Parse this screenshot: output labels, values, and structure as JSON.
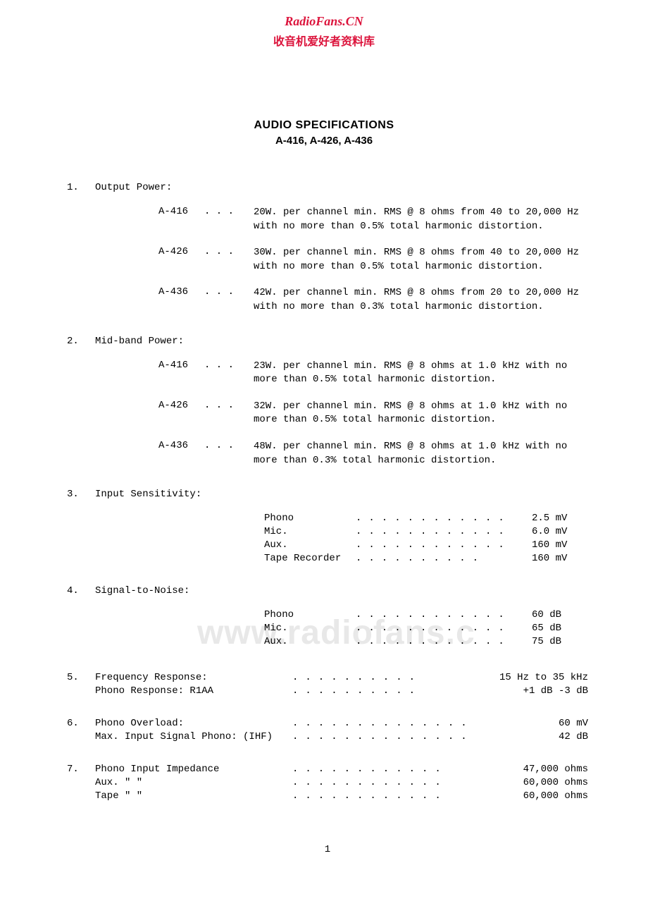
{
  "header": {
    "en": "RadioFans.CN",
    "zh": "收音机爱好者资料库"
  },
  "title": {
    "main": "AUDIO SPECIFICATIONS",
    "sub": "A-416, A-426, A-436"
  },
  "watermark": "www.radiofans.c",
  "sections": {
    "s1": {
      "num": "1.",
      "title": "Output Power:",
      "models": [
        {
          "label": "A-416",
          "dots": ".  .  .",
          "desc": "20W. per channel min. RMS @ 8 ohms from 40 to 20,000 Hz with no more than 0.5% total harmonic distortion."
        },
        {
          "label": "A-426",
          "dots": ".  .  .",
          "desc": "30W. per channel min. RMS @ 8 ohms from 40 to 20,000 Hz with no more than 0.5% total harmonic distortion."
        },
        {
          "label": "A-436",
          "dots": ".  .  .",
          "desc": "42W. per channel min. RMS @ 8 ohms from 20 to 20,000 Hz with no more than 0.3% total harmonic distortion."
        }
      ]
    },
    "s2": {
      "num": "2.",
      "title": "Mid-band Power:",
      "models": [
        {
          "label": "A-416",
          "dots": ".  .  .",
          "desc": "23W. per channel min. RMS @ 8 ohms at 1.0 kHz with no more than 0.5% total harmonic distortion."
        },
        {
          "label": "A-426",
          "dots": ".  .  .",
          "desc": "32W. per channel min. RMS @ 8 ohms at 1.0 kHz with no more than 0.5% total harmonic distortion."
        },
        {
          "label": "A-436",
          "dots": ".  .  .",
          "desc": "48W. per channel min. RMS @ 8 ohms at 1.0 kHz with no more than 0.3% total harmonic distortion."
        }
      ]
    },
    "s3": {
      "num": "3.",
      "title": "Input Sensitivity:",
      "items": [
        {
          "label": "Phono",
          "dots": "............",
          "val": "2.5 mV"
        },
        {
          "label": "Mic.",
          "dots": "............",
          "val": "6.0 mV"
        },
        {
          "label": "Aux.",
          "dots": "............",
          "val": "160 mV"
        },
        {
          "label": "Tape Recorder",
          "dots": "..........",
          "val": "160 mV"
        }
      ]
    },
    "s4": {
      "num": "4.",
      "title": "Signal-to-Noise:",
      "items": [
        {
          "label": "Phono",
          "dots": "............",
          "val": "60 dB"
        },
        {
          "label": "Mic.",
          "dots": "............",
          "val": "65 dB"
        },
        {
          "label": "Aux.",
          "dots": "............",
          "val": "75 dB"
        }
      ]
    },
    "s5": {
      "num": "5.",
      "rows": [
        {
          "label": "Frequency Response:",
          "dots": "..........",
          "val": "15 Hz to 35 kHz"
        },
        {
          "label": "Phono Response: R1AA",
          "dots": "..........",
          "val": "+1 dB -3 dB"
        }
      ]
    },
    "s6": {
      "num": "6.",
      "rows": [
        {
          "label": "Phono Overload:",
          "dots": "..............",
          "val": "60 mV"
        },
        {
          "label": "Max. Input Signal Phono:  (IHF)",
          "dots": "..............",
          "val": "42 dB"
        }
      ]
    },
    "s7": {
      "num": "7.",
      "rows": [
        {
          "label": "Phono Input Impedance",
          "dots": "............",
          "val": "47,000 ohms"
        },
        {
          "label": "Aux.     \"       \"",
          "dots": "............",
          "val": "60,000 ohms"
        },
        {
          "label": "Tape     \"       \"",
          "dots": "............",
          "val": "60,000 ohms"
        }
      ]
    }
  },
  "page_num": "1"
}
